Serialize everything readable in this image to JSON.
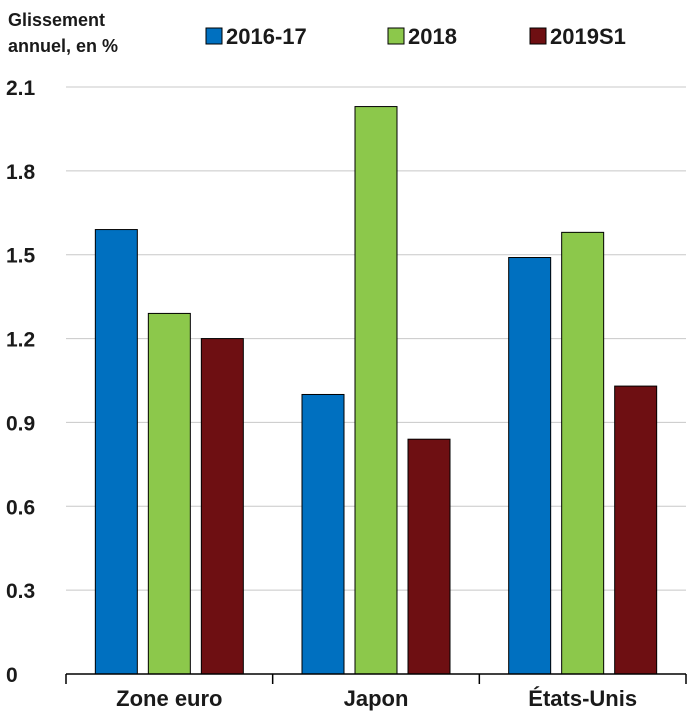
{
  "chart_data": {
    "type": "bar",
    "title": "",
    "xlabel": "",
    "ylabel": "Glissement annuel, en %",
    "ylabel_lines": [
      "Glissement",
      "annuel, en %"
    ],
    "categories": [
      "Zone euro",
      "Japon",
      "États-Unis"
    ],
    "series": [
      {
        "name": "2016-17",
        "color": "#0070c0",
        "values": [
          1.59,
          1.0,
          1.49
        ]
      },
      {
        "name": "2018",
        "color": "#8cc84b",
        "values": [
          1.29,
          2.03,
          1.58
        ]
      },
      {
        "name": "2019S1",
        "color": "#6e0f12",
        "values": [
          1.2,
          0.84,
          1.03
        ]
      }
    ],
    "yticks": [
      "0",
      "0.3",
      "0.6",
      "0.9",
      "1.2",
      "1.5",
      "1.8",
      "2.1"
    ],
    "ylim": [
      0,
      2.1
    ],
    "grid": "horizontal",
    "legend_position": "top"
  }
}
